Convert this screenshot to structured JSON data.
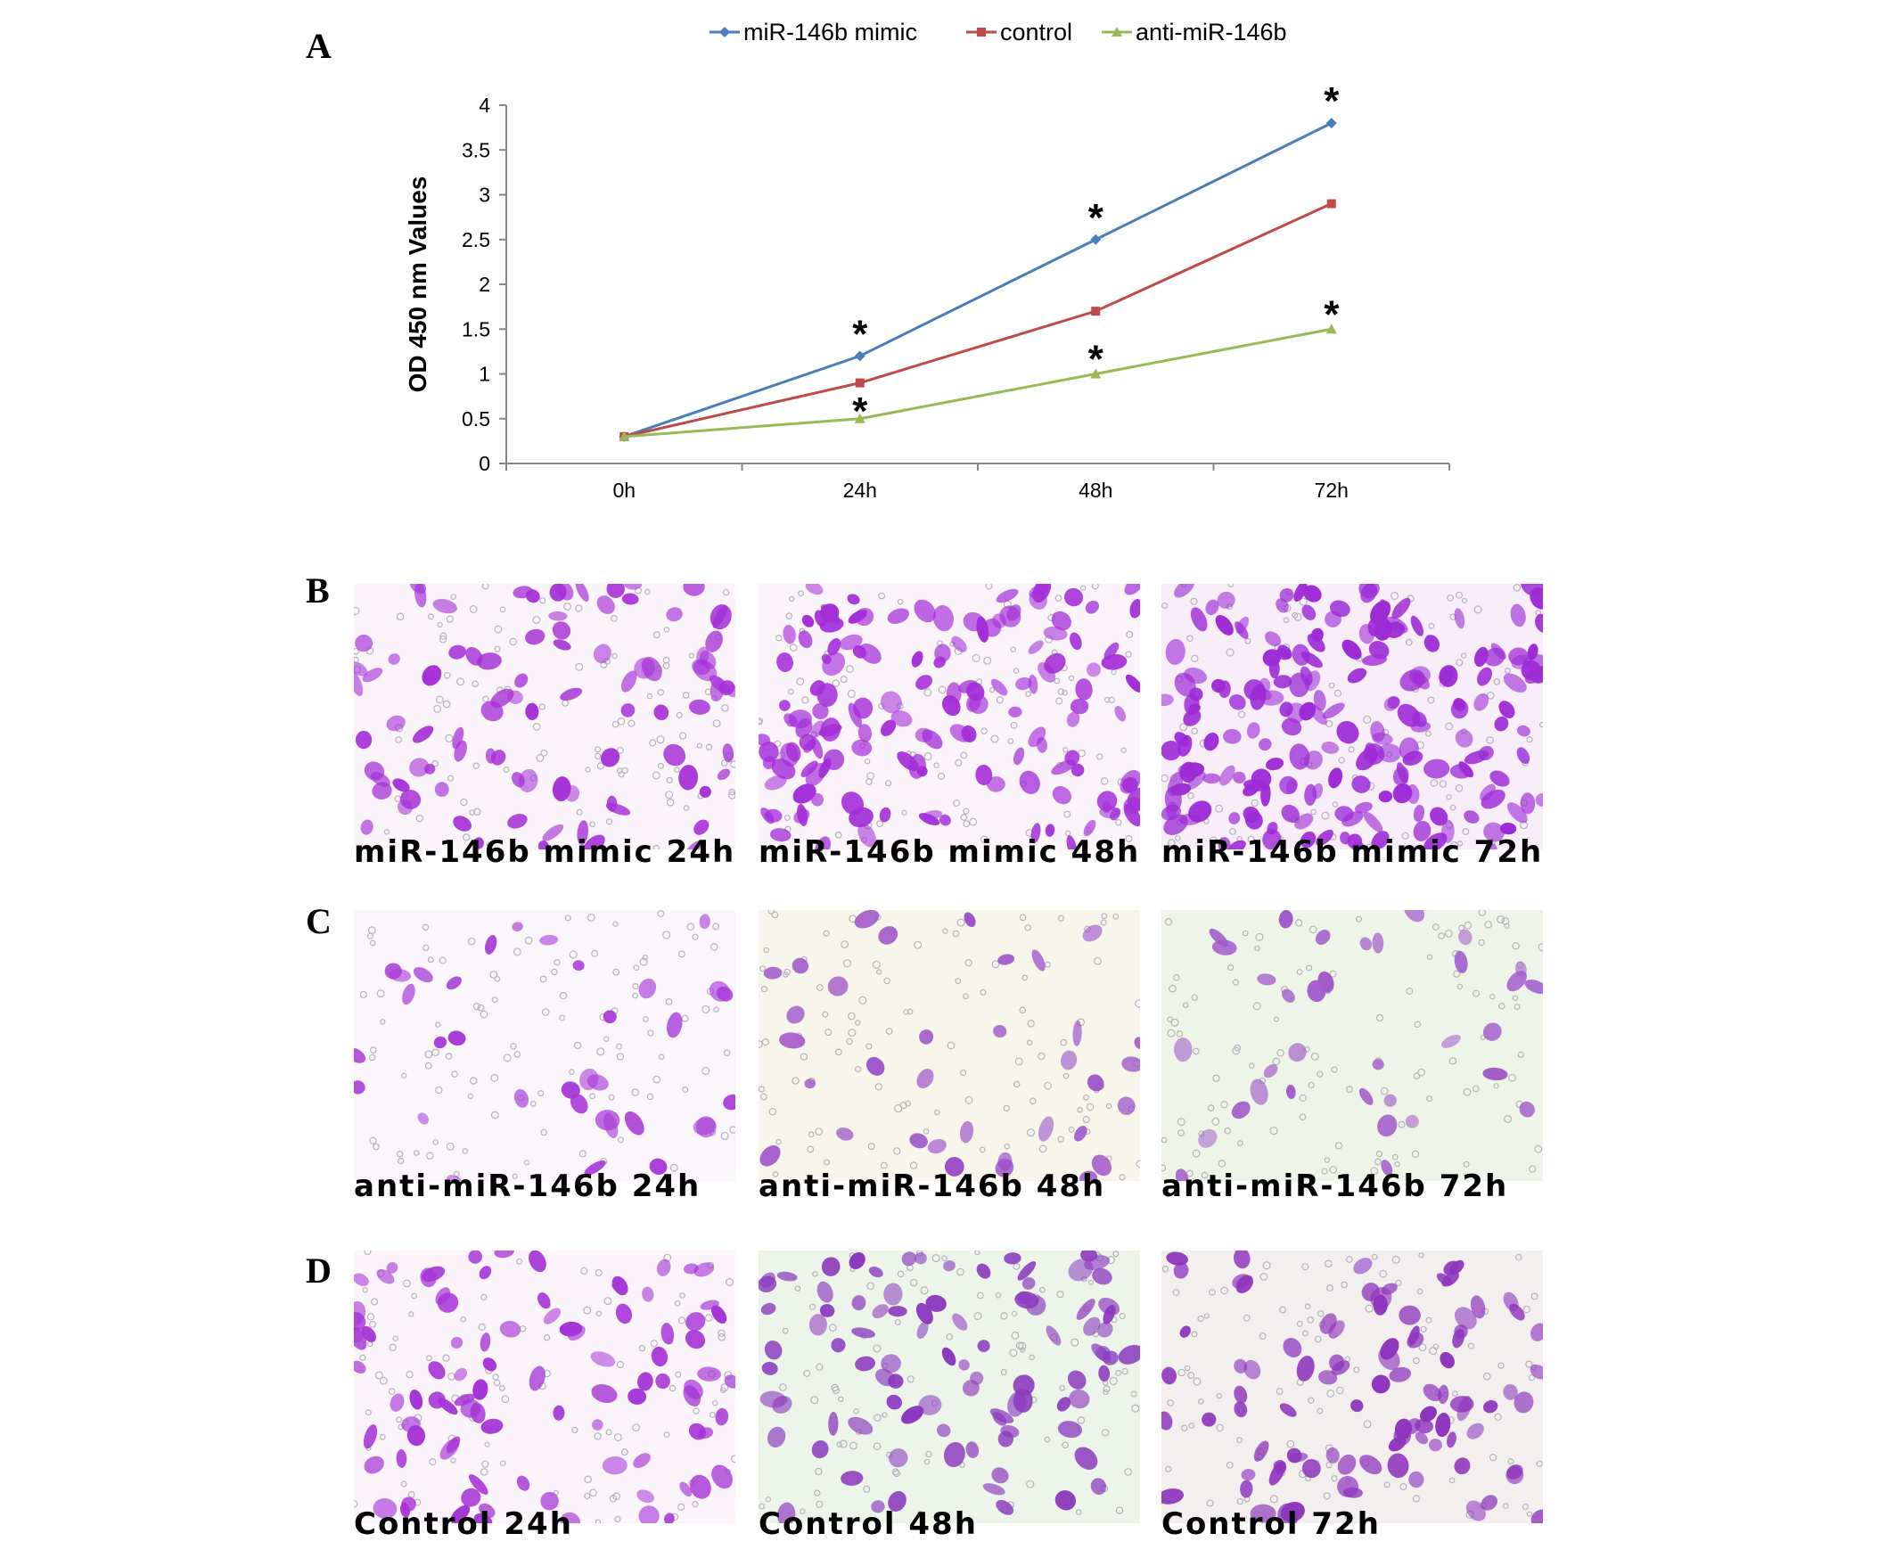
{
  "panels": {
    "A": "A",
    "B": "B",
    "C": "C",
    "D": "D"
  },
  "chart_data": {
    "type": "line",
    "title": "",
    "xlabel": "",
    "ylabel": "OD 450  nm Values",
    "categories": [
      "0h",
      "24h",
      "48h",
      "72h"
    ],
    "ylim": [
      0,
      4
    ],
    "yticks": [
      "0",
      "0.5",
      "1",
      "1.5",
      "2",
      "2.5",
      "3",
      "3.5",
      "4"
    ],
    "legend_position": "top",
    "series": [
      {
        "name": "miR-146b mimic",
        "values": [
          0.3,
          1.2,
          2.5,
          3.8
        ],
        "color": "#4a7ebb",
        "marker": "diamond"
      },
      {
        "name": "control",
        "values": [
          0.3,
          0.9,
          1.7,
          2.9
        ],
        "color": "#be4b48",
        "marker": "square"
      },
      {
        "name": "anti-miR-146b",
        "values": [
          0.3,
          0.5,
          1.0,
          1.5
        ],
        "color": "#98b954",
        "marker": "triangle"
      }
    ],
    "significance_marker": "*",
    "significance": [
      {
        "series": 0,
        "points": [
          1,
          2,
          3
        ]
      },
      {
        "series": 2,
        "points": [
          1,
          2,
          3
        ]
      }
    ]
  },
  "micrographs": {
    "B": [
      {
        "caption": "miR-146b mimic 24h",
        "background": "#fbf4fb",
        "cell_color": "#a631d6",
        "density": "medium"
      },
      {
        "caption": "miR-146b mimic 48h",
        "background": "#fbf4fb",
        "cell_color": "#a42ed8",
        "density": "high"
      },
      {
        "caption": "miR-146b mimic 72h",
        "background": "#f7eefa",
        "cell_color": "#9d2bd6",
        "density": "very-high"
      }
    ],
    "C": [
      {
        "caption": "anti-miR-146b 24h",
        "background": "#fbf6fb",
        "cell_color": "#a83bd8",
        "density": "low"
      },
      {
        "caption": "anti-miR-146b 48h",
        "background": "#f8f5ea",
        "cell_color": "#9a4bc9",
        "density": "low"
      },
      {
        "caption": "anti-miR-146b 72h",
        "background": "#eef5e8",
        "cell_color": "#a25ccb",
        "density": "low"
      }
    ],
    "D": [
      {
        "caption": "Control 24h",
        "background": "#fbf4fb",
        "cell_color": "#a634d6",
        "density": "medium"
      },
      {
        "caption": "Control 48h",
        "background": "#edf4ea",
        "cell_color": "#8c3bbf",
        "density": "medium"
      },
      {
        "caption": "Control 72h",
        "background": "#f3efee",
        "cell_color": "#8e35bd",
        "density": "medium"
      }
    ]
  }
}
